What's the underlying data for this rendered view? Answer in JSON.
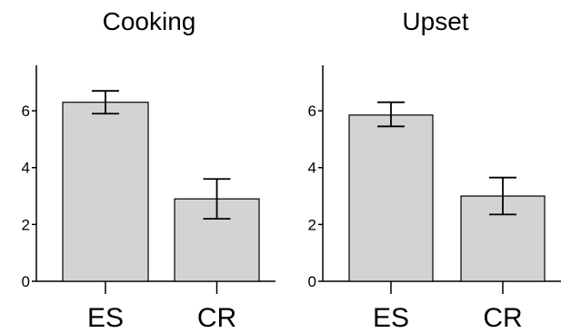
{
  "chart_data": [
    {
      "type": "bar",
      "title": "Cooking",
      "categories": [
        "ES",
        "CR"
      ],
      "values": [
        6.3,
        2.9
      ],
      "error_low": [
        5.9,
        2.2
      ],
      "error_high": [
        6.7,
        3.6
      ],
      "ylim": [
        0,
        7.6
      ],
      "yticks": [
        "0",
        "2",
        "4",
        "6"
      ],
      "bar_color": "#d3d3d3",
      "grid": false
    },
    {
      "type": "bar",
      "title": "Upset",
      "categories": [
        "ES",
        "CR"
      ],
      "values": [
        5.85,
        3.0
      ],
      "error_low": [
        5.45,
        2.35
      ],
      "error_high": [
        6.3,
        3.65
      ],
      "ylim": [
        0,
        7.6
      ],
      "yticks": [
        "0",
        "2",
        "4",
        "6"
      ],
      "bar_color": "#d3d3d3",
      "grid": false
    }
  ]
}
